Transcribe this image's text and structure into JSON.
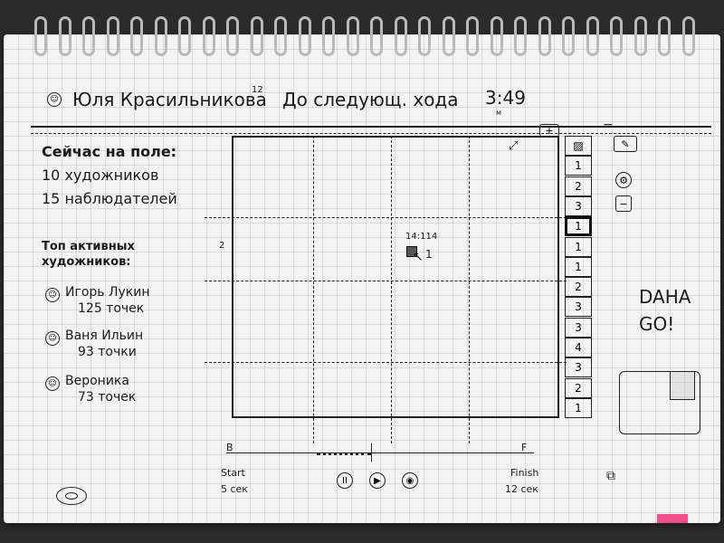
{
  "header": {
    "user_name": "Юля Красильникова",
    "user_number": "12",
    "next_move_label": "До следующ. хода",
    "timer": "3:49",
    "timer_unit": "м"
  },
  "stats": {
    "title": "Сейчас на поле:",
    "artists": "10 художников",
    "watchers": "15 наблюдателей"
  },
  "top": {
    "title": "Топ активных художников:",
    "items": [
      {
        "name": "Игорь Лукин",
        "points": "125 точек"
      },
      {
        "name": "Ваня Ильин",
        "points": "93 точки"
      },
      {
        "name": "Вероника",
        "points": "73 точек"
      }
    ]
  },
  "canvas": {
    "coord_label": "14:114",
    "left_marker": "2",
    "edge_mark": "1"
  },
  "tools": {
    "add": "+",
    "remove": "−",
    "cells": [
      "▨",
      "1",
      "2",
      "3",
      "1",
      "1",
      "1",
      "2",
      "3",
      "3",
      "4",
      "3",
      "2",
      "1"
    ],
    "active_index": 4
  },
  "right_note": {
    "line1": "DAHA",
    "line2": "GO!"
  },
  "timeline": {
    "start_label": "Start",
    "start_time": "5 сек",
    "finish_label": "Finish",
    "finish_time": "12 сек",
    "start_flag": "B",
    "finish_flag": "F"
  },
  "playback": {
    "pause": "II",
    "play": "▶",
    "camera": "◉"
  }
}
